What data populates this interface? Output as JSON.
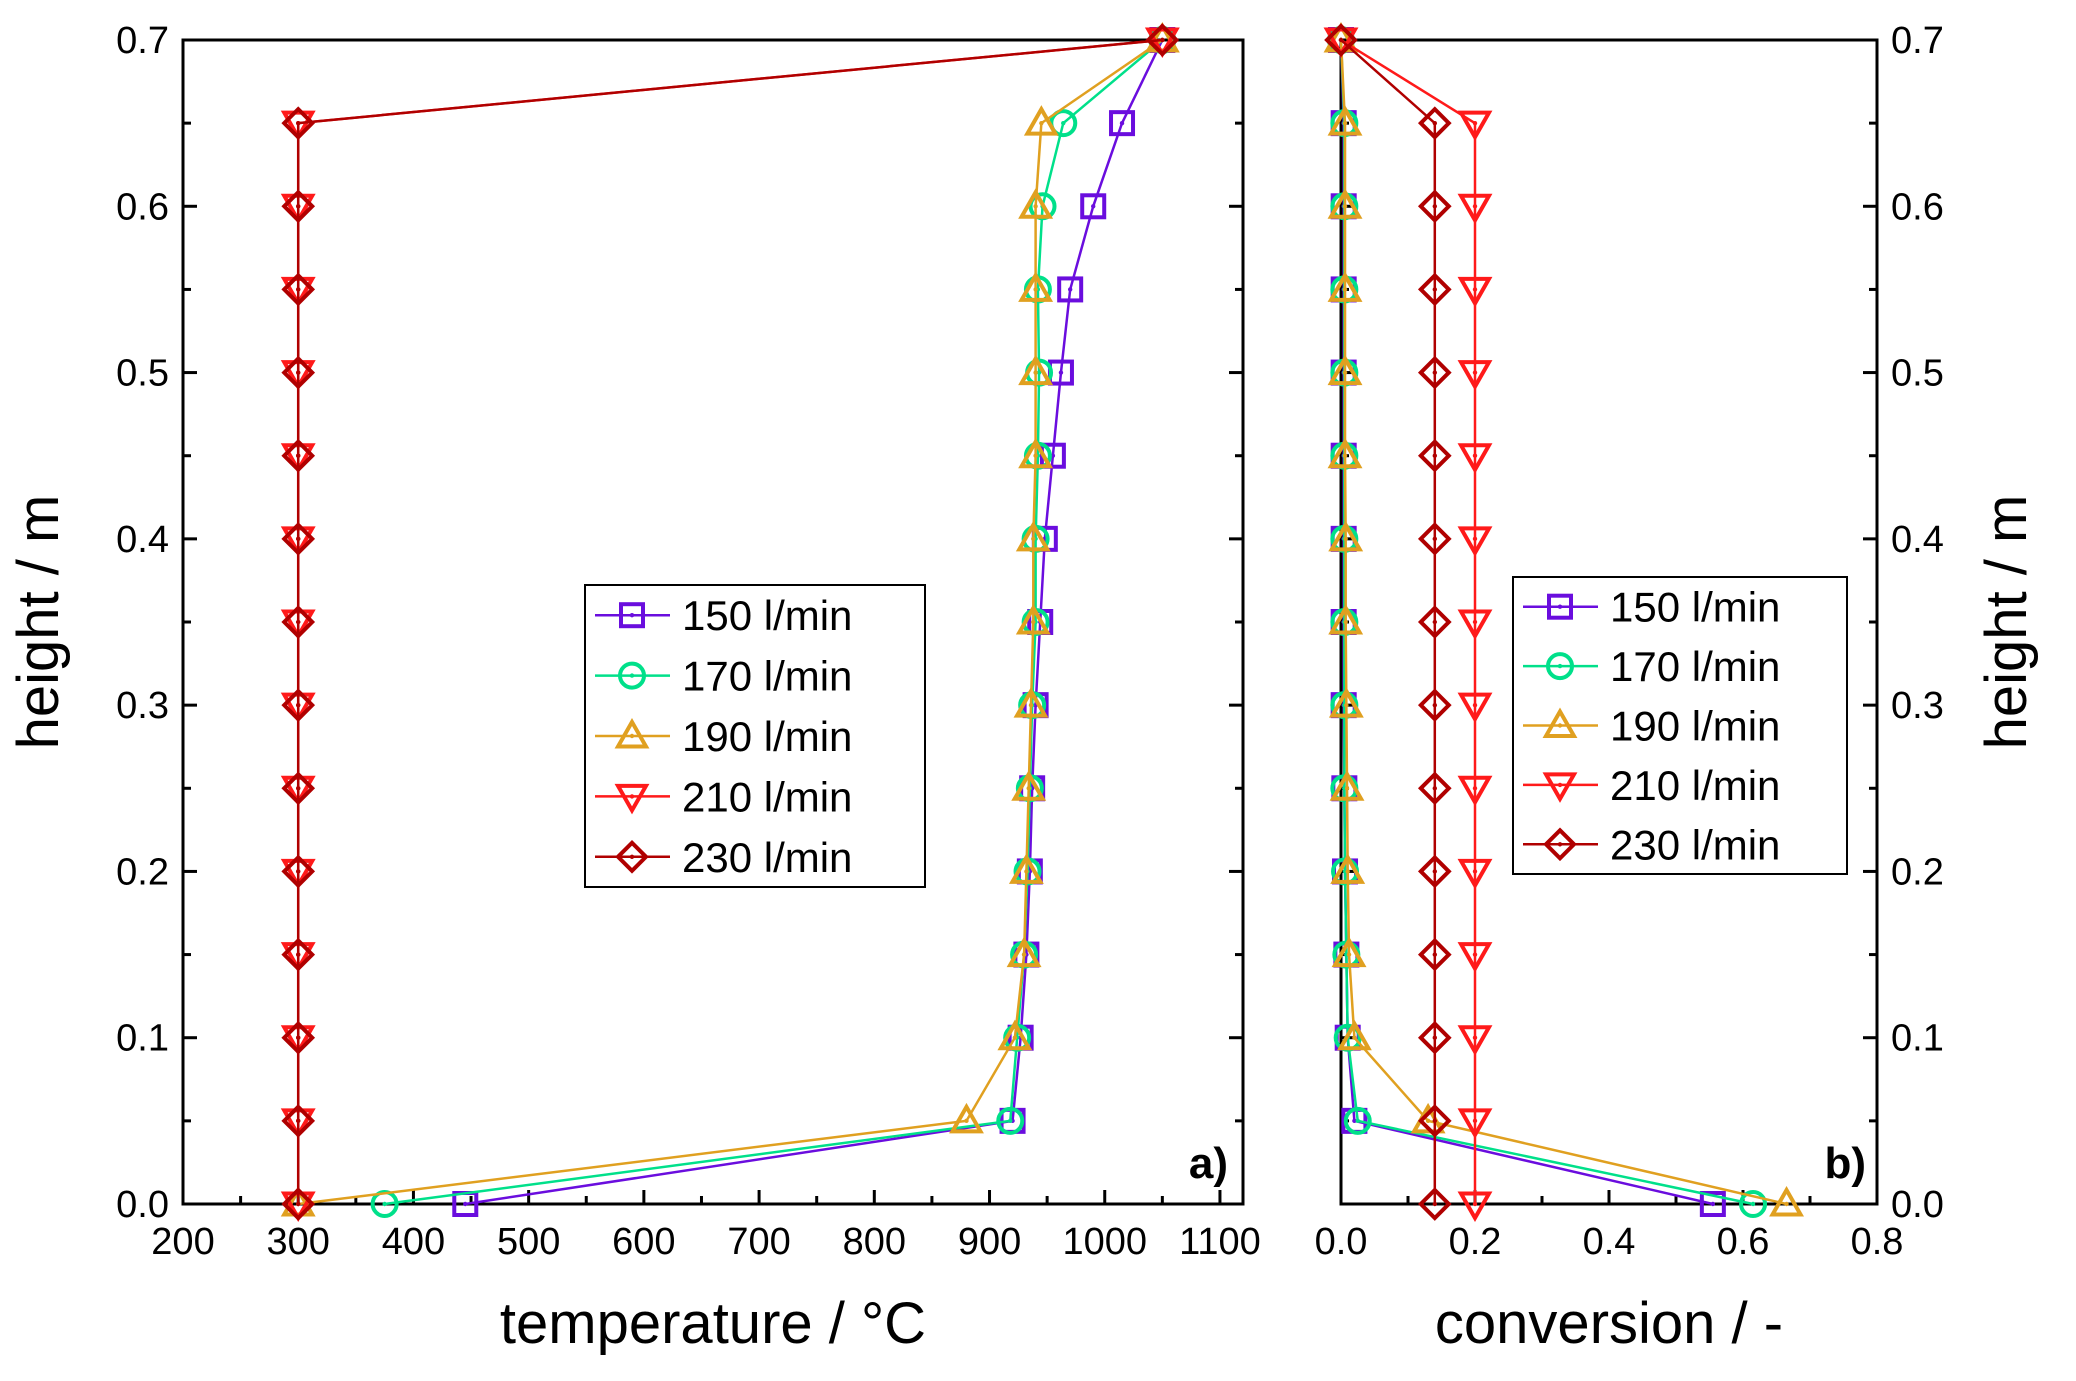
{
  "chart_data": [
    {
      "type": "line",
      "panel_label": "a)",
      "xlabel": "temperature / °C",
      "ylabel": "height / m",
      "xlim": [
        200,
        1120
      ],
      "ylim": [
        0.0,
        0.7
      ],
      "xticks": [
        "200",
        "300",
        "400",
        "500",
        "600",
        "700",
        "800",
        "900",
        "1000",
        "1100"
      ],
      "yticks": [
        "0.0",
        "0.1",
        "0.2",
        "0.3",
        "0.4",
        "0.5",
        "0.6",
        "0.7"
      ],
      "grid": false,
      "legend_position": "center",
      "series": [
        {
          "name": "150 l/min",
          "color": "#6a0dde",
          "marker": "square",
          "x": [
            445,
            920,
            927,
            932,
            935,
            937,
            940,
            944,
            948,
            955,
            962,
            970,
            990,
            1015,
            1050
          ],
          "y": [
            0.0,
            0.05,
            0.1,
            0.15,
            0.2,
            0.25,
            0.3,
            0.35,
            0.4,
            0.45,
            0.5,
            0.55,
            0.6,
            0.65,
            0.7
          ]
        },
        {
          "name": "170 l/min",
          "color": "#00e08a",
          "marker": "circle",
          "x": [
            375,
            918,
            924,
            930,
            933,
            935,
            937,
            940,
            940,
            942,
            943,
            942,
            946,
            964,
            1050
          ],
          "y": [
            0.0,
            0.05,
            0.1,
            0.15,
            0.2,
            0.25,
            0.3,
            0.35,
            0.4,
            0.45,
            0.5,
            0.55,
            0.6,
            0.65,
            0.7
          ]
        },
        {
          "name": "190 l/min",
          "color": "#e0a020",
          "marker": "triangle-up",
          "x": [
            300,
            880,
            922,
            930,
            932,
            934,
            936,
            938,
            938,
            940,
            940,
            940,
            940,
            945,
            1050
          ],
          "y": [
            0.0,
            0.05,
            0.1,
            0.15,
            0.2,
            0.25,
            0.3,
            0.35,
            0.4,
            0.45,
            0.5,
            0.55,
            0.6,
            0.65,
            0.7
          ]
        },
        {
          "name": "210 l/min",
          "color": "#ff1a1a",
          "marker": "triangle-down",
          "x": [
            300,
            300,
            300,
            300,
            300,
            300,
            300,
            300,
            300,
            300,
            300,
            300,
            300,
            300,
            1050
          ],
          "y": [
            0.0,
            0.05,
            0.1,
            0.15,
            0.2,
            0.25,
            0.3,
            0.35,
            0.4,
            0.45,
            0.5,
            0.55,
            0.6,
            0.65,
            0.7
          ]
        },
        {
          "name": "230 l/min",
          "color": "#b00000",
          "marker": "diamond",
          "x": [
            300,
            300,
            300,
            300,
            300,
            300,
            300,
            300,
            300,
            300,
            300,
            300,
            300,
            300,
            1050
          ],
          "y": [
            0.0,
            0.05,
            0.1,
            0.15,
            0.2,
            0.25,
            0.3,
            0.35,
            0.4,
            0.45,
            0.5,
            0.55,
            0.6,
            0.65,
            0.7
          ]
        }
      ]
    },
    {
      "type": "line",
      "panel_label": "b)",
      "xlabel": "conversion / -",
      "ylabel": "height / m",
      "xlim": [
        0.0,
        0.8
      ],
      "ylim": [
        0.0,
        0.7
      ],
      "xticks": [
        "0.0",
        "0.2",
        "0.4",
        "0.6",
        "0.8"
      ],
      "yticks": [
        "0.0",
        "0.1",
        "0.2",
        "0.3",
        "0.4",
        "0.5",
        "0.6",
        "0.7"
      ],
      "grid": false,
      "legend_position": "center",
      "series": [
        {
          "name": "150 l/min",
          "color": "#6a0dde",
          "marker": "square",
          "x": [
            0.555,
            0.02,
            0.01,
            0.008,
            0.006,
            0.005,
            0.004,
            0.004,
            0.004,
            0.004,
            0.004,
            0.004,
            0.004,
            0.004,
            0.0
          ],
          "y": [
            0.0,
            0.05,
            0.1,
            0.15,
            0.2,
            0.25,
            0.3,
            0.35,
            0.4,
            0.45,
            0.5,
            0.55,
            0.6,
            0.65,
            0.7
          ]
        },
        {
          "name": "170 l/min",
          "color": "#00e08a",
          "marker": "circle",
          "x": [
            0.615,
            0.025,
            0.01,
            0.008,
            0.006,
            0.005,
            0.005,
            0.005,
            0.005,
            0.005,
            0.005,
            0.005,
            0.005,
            0.005,
            0.0
          ],
          "y": [
            0.0,
            0.05,
            0.1,
            0.15,
            0.2,
            0.25,
            0.3,
            0.35,
            0.4,
            0.45,
            0.5,
            0.55,
            0.6,
            0.65,
            0.7
          ]
        },
        {
          "name": "190 l/min",
          "color": "#e0a020",
          "marker": "triangle-up",
          "x": [
            0.665,
            0.13,
            0.02,
            0.012,
            0.01,
            0.009,
            0.008,
            0.007,
            0.007,
            0.006,
            0.006,
            0.006,
            0.006,
            0.006,
            0.0
          ],
          "y": [
            0.0,
            0.05,
            0.1,
            0.15,
            0.2,
            0.25,
            0.3,
            0.35,
            0.4,
            0.45,
            0.5,
            0.55,
            0.6,
            0.65,
            0.7
          ]
        },
        {
          "name": "210 l/min",
          "color": "#ff1a1a",
          "marker": "triangle-down",
          "x": [
            0.2,
            0.2,
            0.2,
            0.2,
            0.2,
            0.2,
            0.2,
            0.2,
            0.2,
            0.2,
            0.2,
            0.2,
            0.2,
            0.2,
            0.0
          ],
          "y": [
            0.0,
            0.05,
            0.1,
            0.15,
            0.2,
            0.25,
            0.3,
            0.35,
            0.4,
            0.45,
            0.5,
            0.55,
            0.6,
            0.65,
            0.7
          ]
        },
        {
          "name": "230 l/min",
          "color": "#b00000",
          "marker": "diamond",
          "x": [
            0.14,
            0.14,
            0.14,
            0.14,
            0.14,
            0.14,
            0.14,
            0.14,
            0.14,
            0.14,
            0.14,
            0.14,
            0.14,
            0.14,
            0.0
          ],
          "y": [
            0.0,
            0.05,
            0.1,
            0.15,
            0.2,
            0.25,
            0.3,
            0.35,
            0.4,
            0.45,
            0.5,
            0.55,
            0.6,
            0.65,
            0.7
          ]
        }
      ]
    }
  ]
}
